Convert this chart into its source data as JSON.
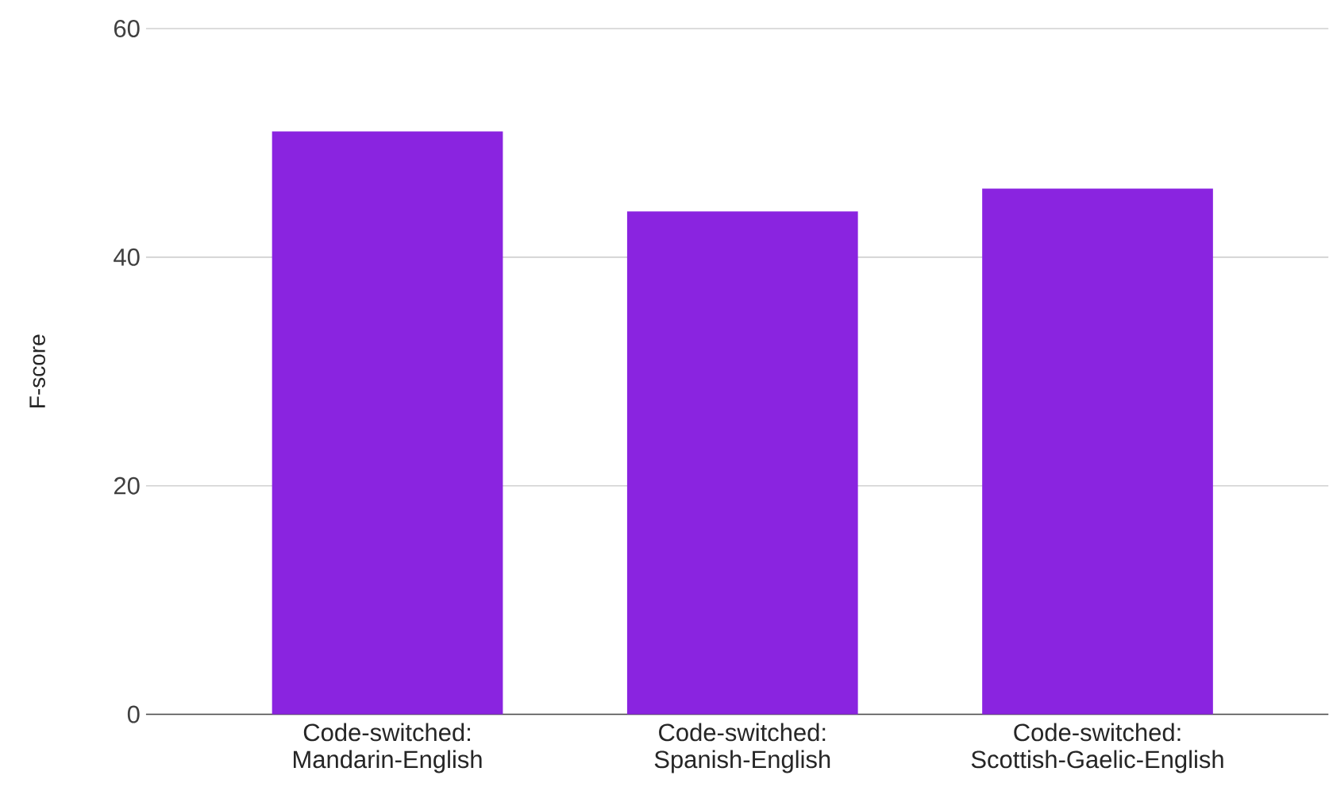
{
  "chart_data": {
    "type": "bar",
    "ylabel": "F-score",
    "categories": [
      "Code-switched: Mandarin-English",
      "Code-switched: Spanish-English",
      "Code-switched: Scottish-Gaelic-English"
    ],
    "values": [
      51,
      44,
      46
    ],
    "color": "#8a24e0",
    "ylim": [
      0,
      60
    ],
    "yticks": [
      0,
      20,
      40,
      60
    ],
    "grid": "y"
  }
}
